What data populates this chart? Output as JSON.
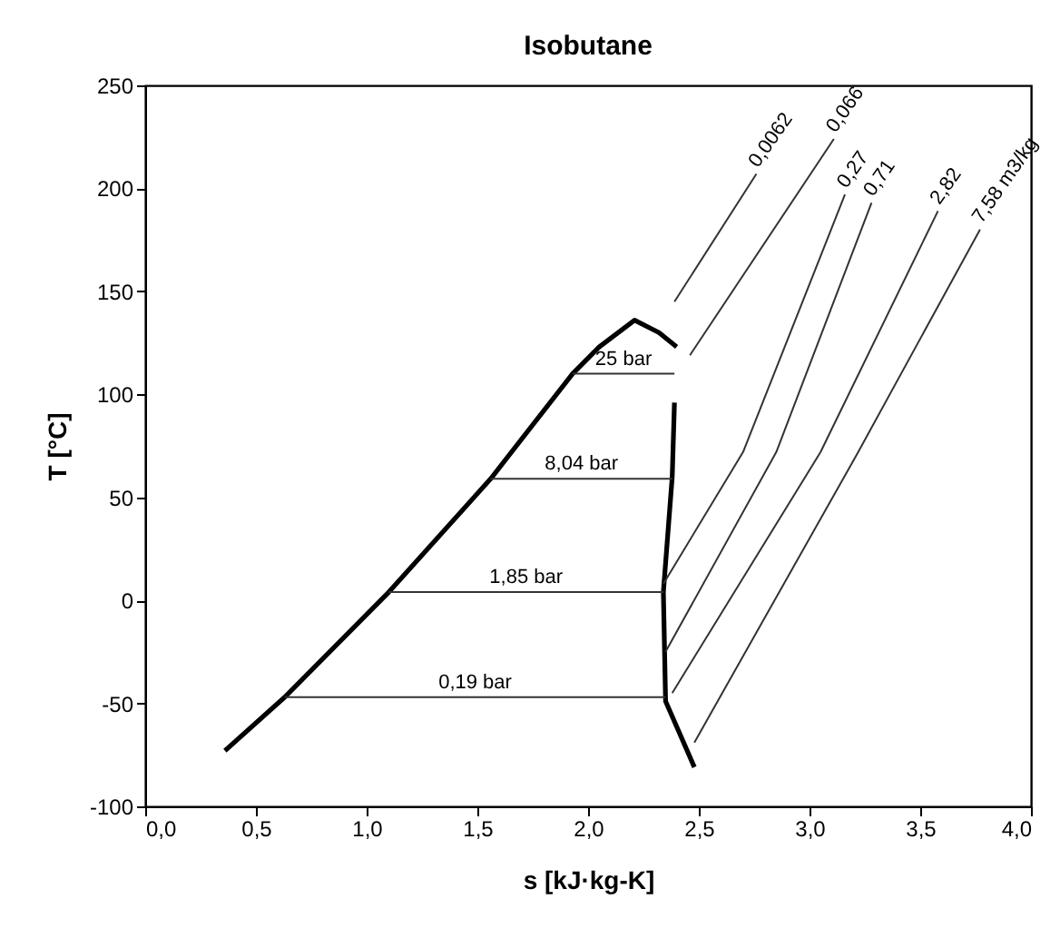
{
  "chart_data": {
    "type": "line",
    "title": "Isobutane",
    "xlabel": "s [kJ·kg-K]",
    "ylabel": "T [°C]",
    "xlim": [
      0,
      4
    ],
    "ylim": [
      -100,
      250
    ],
    "xticks": [
      {
        "value": 0,
        "label": "0,0"
      },
      {
        "value": 0.5,
        "label": "0,5"
      },
      {
        "value": 1,
        "label": "1,0"
      },
      {
        "value": 1.5,
        "label": "1,5"
      },
      {
        "value": 2,
        "label": "2,0"
      },
      {
        "value": 2.5,
        "label": "2,5"
      },
      {
        "value": 3,
        "label": "3,0"
      },
      {
        "value": 3.5,
        "label": "3,5"
      },
      {
        "value": 4,
        "label": "4,0"
      }
    ],
    "yticks": [
      -100,
      -50,
      0,
      50,
      100,
      150,
      200,
      250
    ],
    "grid": false,
    "marker": "none",
    "line_style": "solid",
    "series": [
      {
        "color": "#000000",
        "x": [
          0.36,
          0.63,
          1.1,
          1.56,
          1.93,
          2.05,
          2.21,
          2.32,
          2.4
        ],
        "values": [
          -73,
          -47,
          4,
          59,
          110,
          123,
          136,
          130,
          123
        ]
      },
      {
        "color": "#000000",
        "x": [
          2.39,
          2.38,
          2.34,
          2.35,
          2.48
        ],
        "values": [
          96,
          60,
          4,
          -49,
          -81
        ]
      },
      {
        "name": "25 bar",
        "color": "#333333",
        "x": [
          1.93,
          2.39
        ],
        "values": [
          110,
          110
        ]
      },
      {
        "name": "8,04 bar",
        "color": "#333333",
        "x": [
          1.56,
          2.38
        ],
        "values": [
          59,
          59
        ]
      },
      {
        "name": "1,85 bar",
        "color": "#333333",
        "x": [
          1.1,
          2.34
        ],
        "values": [
          4,
          4
        ]
      },
      {
        "name": "0,19 bar",
        "color": "#333333",
        "x": [
          0.63,
          2.35
        ],
        "values": [
          -47,
          -47
        ]
      },
      {
        "name": "0,0062",
        "color": "#333333",
        "x": [
          2.39,
          2.76
        ],
        "values": [
          145,
          207
        ]
      },
      {
        "name": "0,066",
        "color": "#333333",
        "x": [
          2.46,
          3.11
        ],
        "values": [
          119,
          224
        ]
      },
      {
        "name": "0,27",
        "color": "#333333",
        "x": [
          2.34,
          2.7,
          3.16
        ],
        "values": [
          8,
          72,
          197
        ]
      },
      {
        "name": "0,71",
        "color": "#333333",
        "x": [
          2.35,
          2.85,
          3.28
        ],
        "values": [
          -25,
          72,
          193
        ]
      },
      {
        "name": "2,82",
        "color": "#333333",
        "x": [
          2.38,
          3.05,
          3.58
        ],
        "values": [
          -45,
          72,
          189
        ]
      },
      {
        "name": "7,58 m3/kg",
        "color": "#333333",
        "x": [
          2.48,
          3.22,
          3.77
        ],
        "values": [
          -69,
          72,
          180
        ]
      }
    ]
  }
}
